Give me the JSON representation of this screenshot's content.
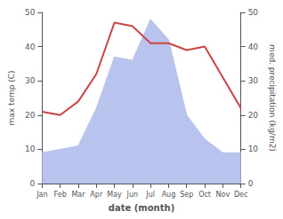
{
  "chart_data": {
    "type": "line",
    "xlabel": "date (month)",
    "ylabel": "max temp (C)",
    "y2label": "med. precipitation (kg/m2)",
    "categories": [
      "Jan",
      "Feb",
      "Mar",
      "Apr",
      "May",
      "Jun",
      "Jul",
      "Aug",
      "Sep",
      "Oct",
      "Nov",
      "Dec"
    ],
    "series": [
      {
        "type": "area",
        "color": "#b8c4ee",
        "values": [
          9,
          10,
          11,
          22,
          37,
          36,
          48,
          42,
          20,
          13,
          9,
          9
        ]
      },
      {
        "type": "line",
        "color": "#cc4444",
        "axis": "y2",
        "values": [
          21,
          20,
          24,
          32,
          47,
          46,
          41,
          41,
          39,
          40,
          31,
          22
        ]
      }
    ],
    "ylim": [
      0,
      50
    ],
    "yticks": [
      0,
      10,
      20,
      30,
      40,
      50
    ],
    "y2lim": [
      0,
      50
    ],
    "y2ticks": [
      0,
      10,
      20,
      30,
      40,
      50
    ],
    "grid": false
  }
}
